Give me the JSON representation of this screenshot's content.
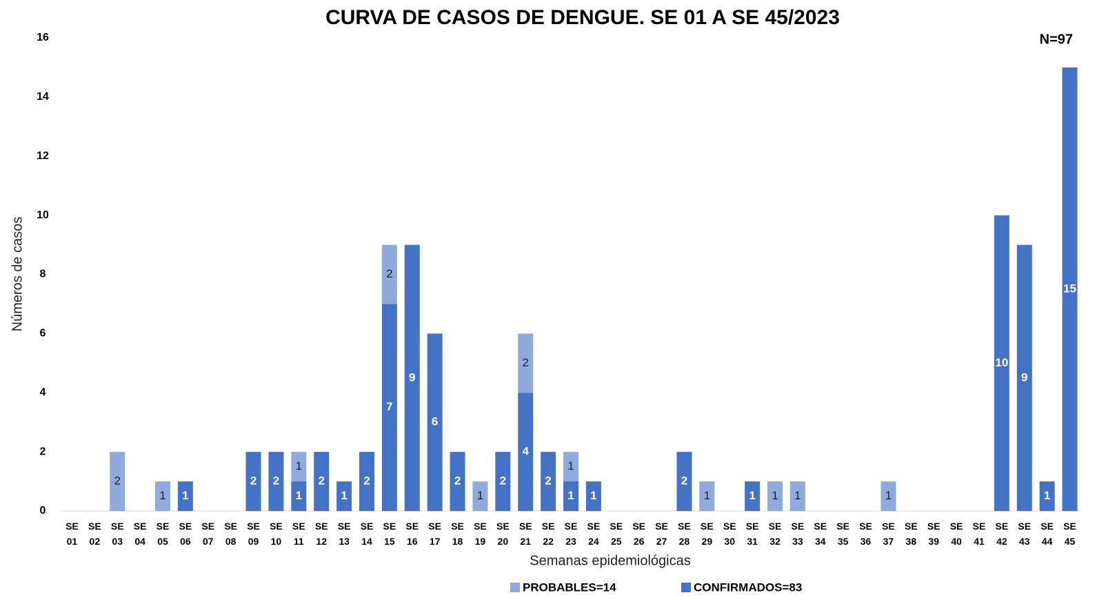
{
  "chart_data": {
    "type": "bar",
    "stacked": true,
    "title": "CURVA DE CASOS DE DENGUE. SE 01 A SE 45/2023",
    "annotation": "N=97",
    "x_label": "Semanas epidemiológicas",
    "y_label": "Números de casos",
    "categories": [
      "SE 01",
      "SE 02",
      "SE 03",
      "SE 04",
      "SE 05",
      "SE 06",
      "SE 07",
      "SE 08",
      "SE 09",
      "SE 10",
      "SE 11",
      "SE 12",
      "SE 13",
      "SE 14",
      "SE 15",
      "SE 16",
      "SE 17",
      "SE 18",
      "SE 19",
      "SE 20",
      "SE 21",
      "SE 22",
      "SE 23",
      "SE 24",
      "SE 25",
      "SE 26",
      "SE 27",
      "SE 28",
      "SE 29",
      "SE 30",
      "SE 31",
      "SE 32",
      "SE 33",
      "SE 34",
      "SE 35",
      "SE 36",
      "SE 37",
      "SE 38",
      "SE 39",
      "SE 40",
      "SE 41",
      "SE 42",
      "SE 43",
      "SE 44",
      "SE 45"
    ],
    "series": [
      {
        "name": "CONFIRMADOS=83",
        "color": "#4472c4",
        "label_color": "#ffffff",
        "values": [
          0,
          0,
          0,
          0,
          0,
          1,
          0,
          0,
          2,
          2,
          1,
          2,
          1,
          2,
          7,
          9,
          6,
          2,
          0,
          2,
          4,
          2,
          1,
          1,
          0,
          0,
          0,
          2,
          0,
          0,
          1,
          0,
          0,
          0,
          0,
          0,
          0,
          0,
          0,
          0,
          0,
          10,
          9,
          1,
          15
        ]
      },
      {
        "name": "PROBABLES=14",
        "color": "#8faadc",
        "label_color": "#222222",
        "values": [
          0,
          0,
          2,
          0,
          1,
          0,
          0,
          0,
          0,
          0,
          1,
          0,
          0,
          0,
          2,
          0,
          0,
          0,
          1,
          0,
          2,
          0,
          1,
          0,
          0,
          0,
          0,
          0,
          1,
          0,
          0,
          1,
          1,
          0,
          0,
          0,
          1,
          0,
          0,
          0,
          0,
          0,
          0,
          0,
          0
        ]
      }
    ],
    "ylim": [
      0,
      16
    ],
    "yticks": [
      0,
      2,
      4,
      6,
      8,
      10,
      12,
      14,
      16
    ],
    "grid": false,
    "legend": "bottom"
  }
}
